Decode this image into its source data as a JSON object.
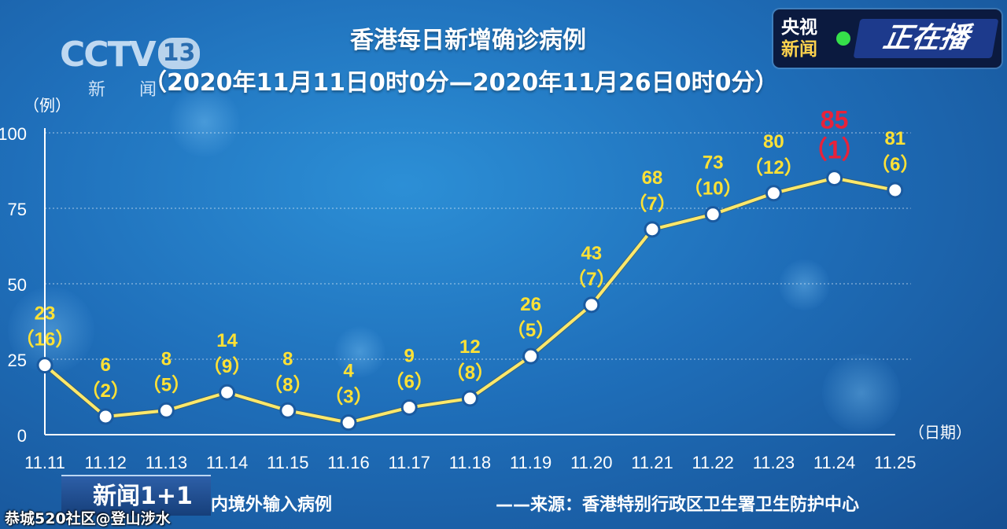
{
  "header": {
    "logo_brand": "CCTV",
    "logo_channel": "13",
    "logo_sub": "新 闻",
    "title": "香港每日新增确诊病例",
    "subtitle": "（2020年11月11日0时0分—2020年11月26日0时0分）"
  },
  "live_badge": {
    "line1": "央视",
    "line2": "新闻",
    "label": "正在播",
    "dot_color": "#35e04a"
  },
  "chart_data": {
    "type": "line",
    "title": "香港每日新增确诊病例",
    "ylabel": "（例）",
    "xlabel": "（日期）",
    "ylim": [
      0,
      100
    ],
    "yticks": [
      0,
      25,
      50,
      75,
      100
    ],
    "ytick_labels": [
      "0",
      "25",
      "50",
      "75",
      "100"
    ],
    "categories": [
      "11.11",
      "11.12",
      "11.13",
      "11.14",
      "11.15",
      "11.16",
      "11.17",
      "11.18",
      "11.19",
      "11.20",
      "11.21",
      "11.22",
      "11.23",
      "11.24",
      "11.25"
    ],
    "series": [
      {
        "values": [
          23,
          6,
          8,
          14,
          8,
          4,
          9,
          12,
          26,
          43,
          68,
          73,
          80,
          85,
          81
        ],
        "color": "#ffe86a"
      }
    ],
    "imported_cases": [
      16,
      2,
      5,
      9,
      8,
      3,
      6,
      8,
      5,
      7,
      7,
      10,
      12,
      1,
      6
    ],
    "imported_labels": [
      "（16）",
      "（2）",
      "（5）",
      "（9）",
      "（8）",
      "（3）",
      "（6）",
      "（8）",
      "（5）",
      "（7）",
      "（7）",
      "（10）",
      "（12）",
      "（1）",
      "（6）"
    ],
    "highlight_index": 13,
    "label_color": "#ffe135",
    "highlight_color": "#e8223a",
    "grid": true
  },
  "footer": {
    "program_logo": "新闻1+1",
    "legend_note": "内境外输入病例",
    "source": "——来源：香港特别行政区卫生署卫生防护中心",
    "watermark": "恭城520社区@登山涉水"
  }
}
